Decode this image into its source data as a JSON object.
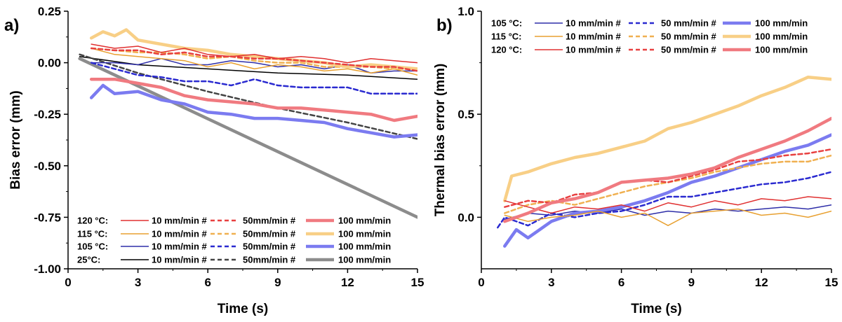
{
  "chart_data": [
    {
      "panel_label": "a)",
      "type": "line",
      "xlabel": "Time (s)",
      "ylabel": "Bias error (mm)",
      "xlim": [
        0,
        15
      ],
      "ylim": [
        -1.0,
        0.25
      ],
      "x_ticks": [
        0,
        3,
        6,
        9,
        12,
        15
      ],
      "x_tick_labels": [
        "0",
        "3",
        "6",
        "9",
        "12",
        "15"
      ],
      "y_ticks": [
        -1.0,
        -0.75,
        -0.5,
        -0.25,
        0.0,
        0.25
      ],
      "y_tick_labels": [
        "-1.00",
        "-0.75",
        "-0.50",
        "-0.25",
        "0.00",
        "0.25"
      ],
      "grid": false,
      "legend_position": "bottom-left",
      "legend": {
        "rows": [
          "25°C:",
          "105 °C:",
          "115 °C:",
          "120 °C:"
        ],
        "columns": [
          "10 mm/min #",
          "50mm/min #",
          "100 mm/min"
        ]
      },
      "series": [
        {
          "name": "25°C 10 mm/min #",
          "color": "#000000",
          "style": "solid",
          "weight": "thin",
          "x": [
            0.5,
            3,
            6,
            9,
            12,
            15
          ],
          "y": [
            0.03,
            -0.01,
            -0.03,
            -0.05,
            -0.06,
            -0.08
          ]
        },
        {
          "name": "25°C 50mm/min #",
          "color": "#444444",
          "style": "dash",
          "weight": "medium",
          "x": [
            0.5,
            3,
            6,
            9,
            12,
            15
          ],
          "y": [
            0.04,
            -0.05,
            -0.14,
            -0.22,
            -0.29,
            -0.37
          ]
        },
        {
          "name": "25°C 100 mm/min",
          "color": "#8c8c8c",
          "style": "solid",
          "weight": "thick",
          "x": [
            0.5,
            15
          ],
          "y": [
            0.02,
            -0.75
          ]
        },
        {
          "name": "105 °C 10 mm/min #",
          "color": "#2e2ea8",
          "style": "solid",
          "weight": "thin",
          "x": [
            1,
            2,
            3,
            4,
            5,
            6,
            7,
            8,
            9,
            10,
            11,
            12,
            13,
            14,
            15
          ],
          "y": [
            0.0,
            0.0,
            -0.01,
            0.02,
            -0.01,
            -0.01,
            0.01,
            0.0,
            -0.02,
            -0.01,
            -0.03,
            -0.01,
            -0.05,
            -0.04,
            -0.04
          ]
        },
        {
          "name": "105 °C 50mm/min #",
          "color": "#2a2ad0",
          "style": "dash",
          "weight": "medium",
          "x": [
            1,
            2,
            3,
            4,
            5,
            6,
            7,
            8,
            9,
            10,
            11,
            12,
            13,
            14,
            15
          ],
          "y": [
            0.0,
            -0.03,
            -0.06,
            -0.07,
            -0.09,
            -0.09,
            -0.11,
            -0.08,
            -0.11,
            -0.12,
            -0.12,
            -0.12,
            -0.15,
            -0.15,
            -0.15
          ]
        },
        {
          "name": "105 °C 100 mm/min",
          "color": "#7b7bf0",
          "style": "solid",
          "weight": "thick",
          "x": [
            1,
            1.5,
            2,
            3,
            4,
            5,
            6,
            7,
            8,
            9,
            10,
            11,
            12,
            13,
            14,
            15
          ],
          "y": [
            -0.17,
            -0.11,
            -0.15,
            -0.14,
            -0.18,
            -0.2,
            -0.24,
            -0.25,
            -0.27,
            -0.27,
            -0.28,
            -0.29,
            -0.32,
            -0.34,
            -0.36,
            -0.35
          ]
        },
        {
          "name": "115 °C 10 mm/min #",
          "color": "#e8a030",
          "style": "solid",
          "weight": "thin",
          "x": [
            1,
            2,
            3,
            4,
            5,
            6,
            7,
            8,
            9,
            10,
            11,
            12,
            13,
            14,
            15
          ],
          "y": [
            0.07,
            0.04,
            0.03,
            0.02,
            0.01,
            -0.02,
            0.0,
            -0.03,
            -0.01,
            -0.02,
            -0.04,
            -0.03,
            -0.05,
            -0.03,
            -0.06
          ]
        },
        {
          "name": "115 °C 50mm/min #",
          "color": "#f0b050",
          "style": "dash",
          "weight": "medium",
          "x": [
            1,
            2,
            3,
            4,
            5,
            6,
            7,
            8,
            9,
            10,
            11,
            12,
            13,
            14,
            15
          ],
          "y": [
            0.07,
            0.06,
            0.05,
            0.05,
            0.04,
            0.02,
            0.03,
            0.01,
            0.0,
            0.0,
            -0.02,
            -0.02,
            -0.02,
            -0.03,
            -0.03
          ]
        },
        {
          "name": "115 °C 100 mm/min",
          "color": "#f8cf86",
          "style": "solid",
          "weight": "thick",
          "x": [
            1,
            1.5,
            2,
            2.5,
            3,
            4,
            5,
            6,
            7,
            8,
            9,
            10,
            11,
            12,
            13,
            14,
            15
          ],
          "y": [
            0.12,
            0.15,
            0.13,
            0.16,
            0.11,
            0.09,
            0.07,
            0.06,
            0.04,
            0.03,
            0.02,
            0.01,
            0.0,
            -0.02,
            -0.01,
            -0.02,
            -0.03
          ]
        },
        {
          "name": "120 °C 10 mm/min #",
          "color": "#e03030",
          "style": "solid",
          "weight": "thin",
          "x": [
            1,
            2,
            3,
            4,
            5,
            6,
            7,
            8,
            9,
            10,
            11,
            12,
            13,
            14,
            15
          ],
          "y": [
            0.09,
            0.07,
            0.08,
            0.05,
            0.07,
            0.04,
            0.03,
            0.04,
            0.02,
            0.03,
            0.02,
            0.0,
            0.02,
            0.01,
            0.0
          ]
        },
        {
          "name": "120 °C 50mm/min #",
          "color": "#e84040",
          "style": "dash",
          "weight": "medium",
          "x": [
            1,
            2,
            3,
            4,
            5,
            6,
            7,
            8,
            9,
            10,
            11,
            12,
            13,
            14,
            15
          ],
          "y": [
            0.07,
            0.06,
            0.06,
            0.04,
            0.05,
            0.03,
            0.03,
            0.02,
            0.02,
            0.01,
            0.0,
            -0.01,
            -0.02,
            -0.02,
            -0.04
          ]
        },
        {
          "name": "120 °C 100 mm/min",
          "color": "#f07a80",
          "style": "solid",
          "weight": "thick",
          "x": [
            1,
            2,
            3,
            4,
            5,
            6,
            7,
            8,
            9,
            10,
            11,
            12,
            13,
            14,
            15
          ],
          "y": [
            -0.08,
            -0.08,
            -0.1,
            -0.12,
            -0.16,
            -0.18,
            -0.19,
            -0.2,
            -0.22,
            -0.22,
            -0.23,
            -0.24,
            -0.25,
            -0.28,
            -0.26
          ]
        }
      ]
    },
    {
      "panel_label": "b)",
      "type": "line",
      "xlabel": "Time (s)",
      "ylabel": "Thermal bias error (mm)",
      "xlim": [
        0,
        15
      ],
      "ylim": [
        -0.25,
        1.0
      ],
      "x_ticks": [
        0,
        3,
        6,
        9,
        12,
        15
      ],
      "x_tick_labels": [
        "0",
        "3",
        "6",
        "9",
        "12",
        "15"
      ],
      "y_ticks": [
        0.0,
        0.5,
        1.0
      ],
      "y_tick_labels": [
        "0.0",
        "0.5",
        "1.0"
      ],
      "grid": false,
      "legend_position": "top-left",
      "legend": {
        "rows": [
          "105 °C:",
          "115 °C:",
          "120 °C:"
        ],
        "columns": [
          "10 mm/min #",
          "50 mm/min #",
          "100 mm/min"
        ]
      },
      "series": [
        {
          "name": "105 °C 10 mm/min #",
          "color": "#2e2ea8",
          "style": "solid",
          "weight": "thin",
          "x": [
            1,
            2,
            3,
            4,
            5,
            6,
            7,
            8,
            9,
            10,
            11,
            12,
            13,
            14,
            15
          ],
          "y": [
            -0.01,
            0.02,
            0.01,
            0.03,
            0.02,
            0.04,
            0.01,
            0.03,
            0.02,
            0.04,
            0.03,
            0.04,
            0.05,
            0.04,
            0.06
          ]
        },
        {
          "name": "105 °C 50 mm/min #",
          "color": "#2a2ad0",
          "style": "dash",
          "weight": "medium",
          "x": [
            0.7,
            1,
            2,
            3,
            4,
            5,
            6,
            7,
            8,
            9,
            10,
            11,
            12,
            13,
            14,
            15
          ],
          "y": [
            -0.05,
            0.0,
            -0.04,
            0.02,
            0.0,
            0.02,
            0.03,
            0.06,
            0.1,
            0.1,
            0.12,
            0.14,
            0.16,
            0.17,
            0.19,
            0.22
          ]
        },
        {
          "name": "105 °C 100 mm/min",
          "color": "#7b7bf0",
          "style": "solid",
          "weight": "thick",
          "x": [
            1,
            1.5,
            2,
            3,
            4,
            5,
            6,
            7,
            8,
            9,
            10,
            11,
            12,
            13,
            14,
            15
          ],
          "y": [
            -0.14,
            -0.06,
            -0.1,
            -0.02,
            0.02,
            0.03,
            0.05,
            0.08,
            0.12,
            0.17,
            0.2,
            0.24,
            0.28,
            0.32,
            0.35,
            0.4
          ]
        },
        {
          "name": "115 °C 10 mm/min #",
          "color": "#e8a030",
          "style": "solid",
          "weight": "thin",
          "x": [
            1,
            2,
            3,
            4,
            5,
            6,
            7,
            8,
            9,
            10,
            11,
            12,
            13,
            14,
            15
          ],
          "y": [
            0.01,
            -0.02,
            0.0,
            0.01,
            0.03,
            0.0,
            0.02,
            -0.04,
            0.02,
            0.03,
            0.04,
            0.01,
            0.02,
            0.0,
            0.03
          ]
        },
        {
          "name": "115 °C 50 mm/min #",
          "color": "#f0b050",
          "style": "dash",
          "weight": "medium",
          "x": [
            1,
            2,
            3,
            4,
            5,
            6,
            7,
            8,
            9,
            10,
            11,
            12,
            13,
            14,
            15
          ],
          "y": [
            0.02,
            0.06,
            0.08,
            0.06,
            0.09,
            0.12,
            0.15,
            0.17,
            0.19,
            0.22,
            0.24,
            0.26,
            0.27,
            0.27,
            0.3
          ]
        },
        {
          "name": "115 °C 100 mm/min",
          "color": "#f8cf86",
          "style": "solid",
          "weight": "thick",
          "x": [
            1,
            1.3,
            2,
            3,
            4,
            5,
            6,
            7,
            8,
            9,
            10,
            11,
            12,
            13,
            14,
            15
          ],
          "y": [
            0.08,
            0.2,
            0.22,
            0.26,
            0.29,
            0.31,
            0.34,
            0.37,
            0.43,
            0.46,
            0.5,
            0.54,
            0.59,
            0.63,
            0.68,
            0.67
          ]
        },
        {
          "name": "120 °C 10 mm/min #",
          "color": "#e03030",
          "style": "solid",
          "weight": "thin",
          "x": [
            1,
            2,
            3,
            4,
            5,
            6,
            7,
            8,
            9,
            10,
            11,
            12,
            13,
            14,
            15
          ],
          "y": [
            0.08,
            0.05,
            0.02,
            0.05,
            0.04,
            0.06,
            0.03,
            0.07,
            0.05,
            0.08,
            0.06,
            0.09,
            0.08,
            0.1,
            0.09
          ]
        },
        {
          "name": "120 °C 50 mm/min #",
          "color": "#e84040",
          "style": "dash",
          "weight": "medium",
          "x": [
            1,
            2,
            3,
            4,
            5,
            6,
            7,
            8,
            9,
            10,
            11,
            12,
            13,
            14,
            15
          ],
          "y": [
            0.05,
            0.08,
            0.07,
            0.11,
            0.12,
            0.17,
            0.18,
            0.17,
            0.2,
            0.23,
            0.27,
            0.28,
            0.3,
            0.31,
            0.33
          ]
        },
        {
          "name": "120 °C 100 mm/min",
          "color": "#f07a80",
          "style": "solid",
          "weight": "thick",
          "x": [
            1,
            2,
            3,
            4,
            5,
            6,
            7,
            8,
            9,
            10,
            11,
            12,
            13,
            14,
            15
          ],
          "y": [
            -0.02,
            0.02,
            0.07,
            0.09,
            0.12,
            0.17,
            0.18,
            0.19,
            0.21,
            0.24,
            0.29,
            0.33,
            0.37,
            0.42,
            0.48
          ]
        }
      ]
    }
  ]
}
